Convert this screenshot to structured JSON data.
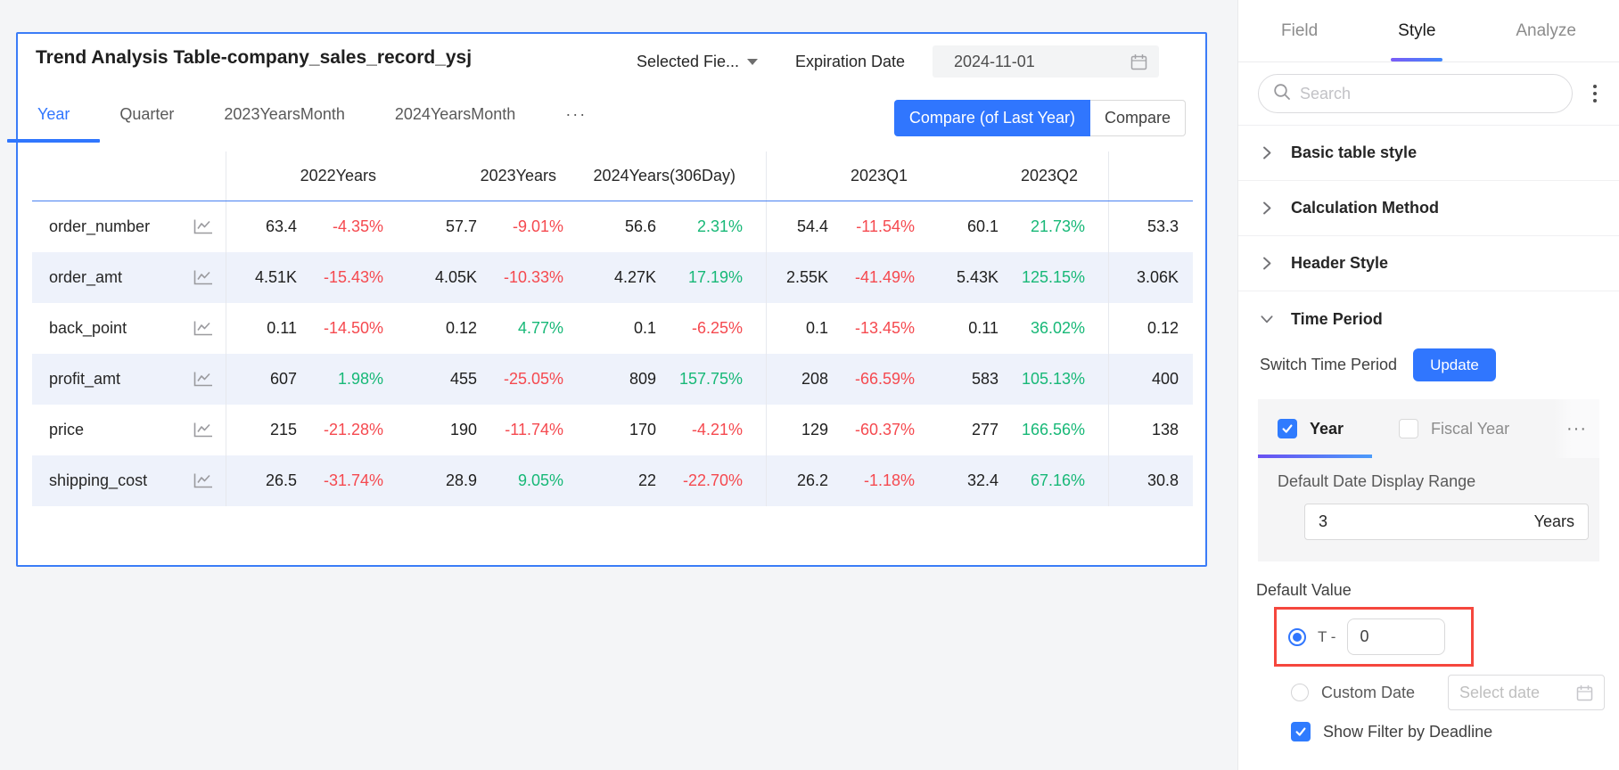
{
  "app": {
    "accent_blue": "#3076fe",
    "positive_green": "#17b877",
    "negative_red": "#f5494f",
    "annotation_red": "#f5473d",
    "alt_row_bg": "#eef2fb"
  },
  "chart": {
    "title": "Trend Analysis Table-company_sales_record_ysj",
    "selected_fields": "Selected Fie...",
    "expiration_label": "Expiration Date",
    "expiration_date": "2024-11-01",
    "view_tabs": [
      "Year",
      "Quarter",
      "2023YearsMonth",
      "2024YearsMonth",
      "···"
    ],
    "active_view_tab": "Year",
    "compare_primary": "Compare (of Last Year)",
    "compare_secondary": "Compare"
  },
  "chart_data": {
    "type": "table",
    "title": "Trend Analysis Table-company_sales_record_ysj",
    "columns": [
      "2022Years",
      "2023Years",
      "2024Years(306Day)",
      "2023Q1",
      "2023Q2",
      ""
    ],
    "rows": [
      {
        "metric": "order_number",
        "cells": [
          {
            "value": "63.4",
            "change": "-4.35%"
          },
          {
            "value": "57.7",
            "change": "-9.01%"
          },
          {
            "value": "56.6",
            "change": "2.31%"
          },
          {
            "value": "54.4",
            "change": "-11.54%"
          },
          {
            "value": "60.1",
            "change": "21.73%"
          },
          {
            "value": "53.3"
          }
        ]
      },
      {
        "metric": "order_amt",
        "cells": [
          {
            "value": "4.51K",
            "change": "-15.43%"
          },
          {
            "value": "4.05K",
            "change": "-10.33%"
          },
          {
            "value": "4.27K",
            "change": "17.19%"
          },
          {
            "value": "2.55K",
            "change": "-41.49%"
          },
          {
            "value": "5.43K",
            "change": "125.15%"
          },
          {
            "value": "3.06K"
          }
        ]
      },
      {
        "metric": "back_point",
        "cells": [
          {
            "value": "0.11",
            "change": "-14.50%"
          },
          {
            "value": "0.12",
            "change": "4.77%"
          },
          {
            "value": "0.1",
            "change": "-6.25%"
          },
          {
            "value": "0.1",
            "change": "-13.45%"
          },
          {
            "value": "0.11",
            "change": "36.02%"
          },
          {
            "value": "0.12"
          }
        ]
      },
      {
        "metric": "profit_amt",
        "cells": [
          {
            "value": "607",
            "change": "1.98%"
          },
          {
            "value": "455",
            "change": "-25.05%"
          },
          {
            "value": "809",
            "change": "157.75%"
          },
          {
            "value": "208",
            "change": "-66.59%"
          },
          {
            "value": "583",
            "change": "105.13%"
          },
          {
            "value": "400"
          }
        ]
      },
      {
        "metric": "price",
        "cells": [
          {
            "value": "215",
            "change": "-21.28%"
          },
          {
            "value": "190",
            "change": "-11.74%"
          },
          {
            "value": "170",
            "change": "-4.21%"
          },
          {
            "value": "129",
            "change": "-60.37%"
          },
          {
            "value": "277",
            "change": "166.56%"
          },
          {
            "value": "138"
          }
        ]
      },
      {
        "metric": "shipping_cost",
        "cells": [
          {
            "value": "26.5",
            "change": "-31.74%"
          },
          {
            "value": "28.9",
            "change": "9.05%"
          },
          {
            "value": "22",
            "change": "-22.70%"
          },
          {
            "value": "26.2",
            "change": "-1.18%"
          },
          {
            "value": "32.4",
            "change": "67.16%"
          },
          {
            "value": "30.8"
          }
        ]
      }
    ]
  },
  "panel": {
    "tabs": [
      "Field",
      "Style",
      "Analyze"
    ],
    "active_tab": "Style",
    "search_placeholder": "Search",
    "sections": [
      {
        "label": "Basic table style",
        "expanded": false
      },
      {
        "label": "Calculation Method",
        "expanded": false
      },
      {
        "label": "Header Style",
        "expanded": false
      },
      {
        "label": "Time Period",
        "expanded": true
      }
    ],
    "time_period": {
      "switch_label": "Switch Time Period",
      "update_button": "Update",
      "year_tab": "Year",
      "year_checked": true,
      "fiscal_tab": "Fiscal Year",
      "fiscal_checked": false,
      "more": "···",
      "range_label": "Default Date Display Range",
      "range_value": "3",
      "range_unit": "Years",
      "default_value_label": "Default Value",
      "t_label": "T -",
      "t_value": "0",
      "custom_date_label": "Custom Date",
      "custom_date_placeholder": "Select date",
      "show_filter_label": "Show Filter by Deadline"
    }
  }
}
